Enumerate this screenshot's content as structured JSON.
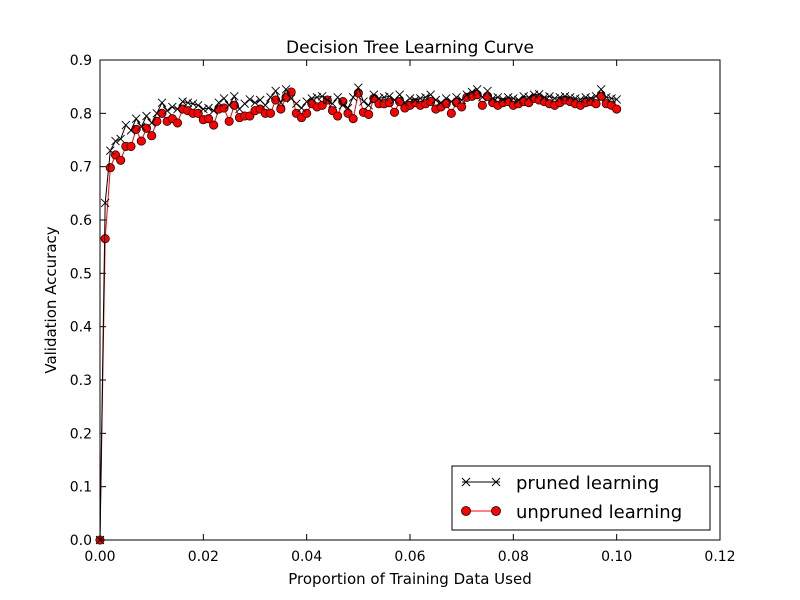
{
  "chart_data": {
    "type": "line",
    "title": "Decision Tree Learning Curve",
    "xlabel": "Proportion of Training Data Used",
    "ylabel": "Validation Accuracy",
    "xlim": [
      0.0,
      0.12
    ],
    "ylim": [
      0.0,
      0.9
    ],
    "xticks": [
      "0.00",
      "0.02",
      "0.04",
      "0.06",
      "0.08",
      "0.10",
      "0.12"
    ],
    "yticks": [
      "0.0",
      "0.1",
      "0.2",
      "0.3",
      "0.4",
      "0.5",
      "0.6",
      "0.7",
      "0.8",
      "0.9"
    ],
    "grid": false,
    "legend_position": "lower-right",
    "x": [
      0.0,
      0.001,
      0.002,
      0.003,
      0.004,
      0.005,
      0.006,
      0.007,
      0.008,
      0.009,
      0.01,
      0.011,
      0.012,
      0.013,
      0.014,
      0.015,
      0.016,
      0.017,
      0.018,
      0.019,
      0.02,
      0.021,
      0.022,
      0.023,
      0.024,
      0.025,
      0.026,
      0.027,
      0.028,
      0.029,
      0.03,
      0.031,
      0.032,
      0.033,
      0.034,
      0.035,
      0.036,
      0.037,
      0.038,
      0.039,
      0.04,
      0.041,
      0.042,
      0.043,
      0.044,
      0.045,
      0.046,
      0.047,
      0.048,
      0.049,
      0.05,
      0.051,
      0.052,
      0.053,
      0.054,
      0.055,
      0.056,
      0.057,
      0.058,
      0.059,
      0.06,
      0.061,
      0.062,
      0.063,
      0.064,
      0.065,
      0.066,
      0.067,
      0.068,
      0.069,
      0.07,
      0.071,
      0.072,
      0.073,
      0.074,
      0.075,
      0.076,
      0.077,
      0.078,
      0.079,
      0.08,
      0.081,
      0.082,
      0.083,
      0.084,
      0.085,
      0.086,
      0.087,
      0.088,
      0.089,
      0.09,
      0.091,
      0.092,
      0.093,
      0.094,
      0.095,
      0.096,
      0.097,
      0.098,
      0.099,
      0.1
    ],
    "series": [
      {
        "name": "pruned learning",
        "color": "#000000",
        "marker": "x",
        "values": [
          0.0,
          0.632,
          0.73,
          0.748,
          0.752,
          0.778,
          0.768,
          0.79,
          0.775,
          0.795,
          0.782,
          0.8,
          0.82,
          0.805,
          0.812,
          0.808,
          0.822,
          0.82,
          0.818,
          0.815,
          0.808,
          0.81,
          0.805,
          0.82,
          0.828,
          0.815,
          0.832,
          0.808,
          0.818,
          0.826,
          0.82,
          0.825,
          0.815,
          0.83,
          0.842,
          0.82,
          0.845,
          0.828,
          0.818,
          0.81,
          0.822,
          0.828,
          0.83,
          0.832,
          0.825,
          0.818,
          0.83,
          0.815,
          0.81,
          0.83,
          0.848,
          0.822,
          0.815,
          0.835,
          0.828,
          0.83,
          0.832,
          0.825,
          0.835,
          0.82,
          0.828,
          0.825,
          0.828,
          0.83,
          0.835,
          0.825,
          0.82,
          0.828,
          0.822,
          0.83,
          0.825,
          0.835,
          0.84,
          0.845,
          0.83,
          0.842,
          0.828,
          0.83,
          0.826,
          0.83,
          0.828,
          0.825,
          0.832,
          0.83,
          0.835,
          0.836,
          0.83,
          0.832,
          0.828,
          0.83,
          0.832,
          0.83,
          0.828,
          0.826,
          0.83,
          0.828,
          0.832,
          0.845,
          0.83,
          0.828,
          0.826
        ]
      },
      {
        "name": "unpruned learning",
        "color": "#ff0000",
        "marker": "o",
        "values": [
          0.0,
          0.565,
          0.698,
          0.722,
          0.712,
          0.738,
          0.738,
          0.77,
          0.748,
          0.772,
          0.758,
          0.785,
          0.8,
          0.785,
          0.79,
          0.782,
          0.808,
          0.805,
          0.8,
          0.8,
          0.788,
          0.79,
          0.778,
          0.808,
          0.81,
          0.785,
          0.815,
          0.792,
          0.795,
          0.795,
          0.805,
          0.808,
          0.8,
          0.8,
          0.825,
          0.808,
          0.83,
          0.84,
          0.8,
          0.792,
          0.8,
          0.818,
          0.812,
          0.815,
          0.825,
          0.805,
          0.795,
          0.822,
          0.8,
          0.79,
          0.838,
          0.802,
          0.798,
          0.828,
          0.818,
          0.818,
          0.82,
          0.802,
          0.822,
          0.81,
          0.815,
          0.82,
          0.815,
          0.818,
          0.822,
          0.808,
          0.812,
          0.818,
          0.8,
          0.82,
          0.812,
          0.83,
          0.832,
          0.835,
          0.815,
          0.832,
          0.82,
          0.815,
          0.82,
          0.822,
          0.815,
          0.818,
          0.822,
          0.82,
          0.828,
          0.825,
          0.822,
          0.818,
          0.815,
          0.82,
          0.825,
          0.822,
          0.818,
          0.815,
          0.82,
          0.822,
          0.818,
          0.832,
          0.818,
          0.815,
          0.808
        ]
      }
    ]
  }
}
